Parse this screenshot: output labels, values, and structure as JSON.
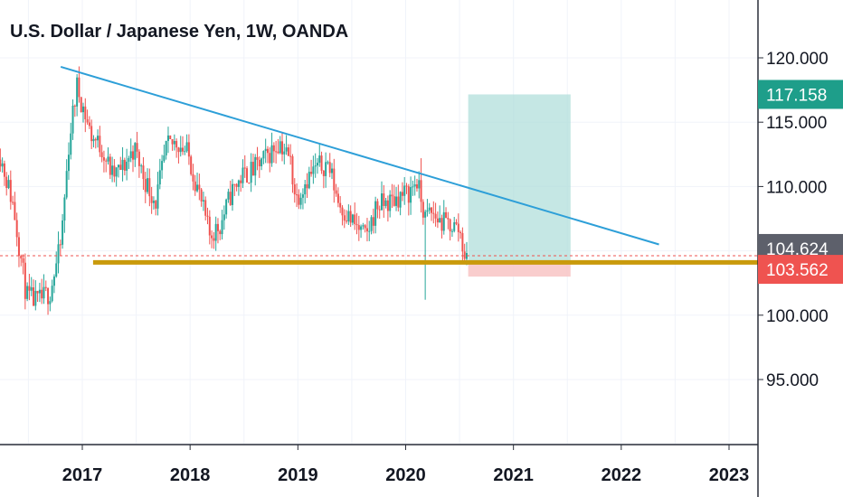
{
  "chart_data": {
    "type": "candlestick",
    "title": "U.S. Dollar / Japanese Yen, 1W, OANDA",
    "x_tick_labels": [
      "2017",
      "2018",
      "2019",
      "2020",
      "2021",
      "2022",
      "2023"
    ],
    "y_tick_labels": [
      "120.000",
      "115.000",
      "110.000",
      "100.000",
      "95.000"
    ],
    "y_ticks": [
      120,
      115,
      110,
      100,
      95
    ],
    "ylim": [
      89.5,
      124.5
    ],
    "xlim": [
      2016.22,
      2023.3
    ],
    "grid": true,
    "price_tags": [
      {
        "label": "117.158",
        "value": 117.158,
        "color": "#1e9e8a"
      },
      {
        "label": "104.624",
        "value": 104.624,
        "color": "#5d606b"
      },
      {
        "label": "103.562",
        "value": 103.562,
        "color": "#ef5350"
      }
    ],
    "dashed_price_line": 104.624,
    "trendline": {
      "x1": 2016.8,
      "y1": 119.3,
      "x2": 2022.35,
      "y2": 105.5,
      "color": "#2d9fd8"
    },
    "support_line": {
      "x1": 2016.3,
      "x2": 2023.3,
      "y": 104.1,
      "color": "#c99a0b"
    },
    "position": {
      "entry": 104.2,
      "target": 117.158,
      "stop": 103.0,
      "x_start": 2020.58,
      "x_end": 2021.53,
      "profit_color": "#b2dfdb",
      "loss_color": "#f8c4c4"
    },
    "up_color": "#26a69a",
    "down_color": "#ef5350",
    "anchors": [
      [
        2016.22,
        113.6
      ],
      [
        2016.38,
        108.5
      ],
      [
        2016.5,
        101.5
      ],
      [
        2016.6,
        101.0
      ],
      [
        2016.72,
        101.8
      ],
      [
        2016.82,
        105.5
      ],
      [
        2016.9,
        113.8
      ],
      [
        2016.97,
        117.8
      ],
      [
        2017.1,
        114.0
      ],
      [
        2017.2,
        113.0
      ],
      [
        2017.3,
        110.8
      ],
      [
        2017.4,
        111.5
      ],
      [
        2017.5,
        113.0
      ],
      [
        2017.6,
        110.5
      ],
      [
        2017.7,
        108.8
      ],
      [
        2017.8,
        113.0
      ],
      [
        2017.9,
        113.5
      ],
      [
        2018.0,
        112.5
      ],
      [
        2018.1,
        109.5
      ],
      [
        2018.2,
        106.2
      ],
      [
        2018.3,
        107.0
      ],
      [
        2018.4,
        109.5
      ],
      [
        2018.5,
        110.8
      ],
      [
        2018.6,
        111.2
      ],
      [
        2018.75,
        112.5
      ],
      [
        2018.85,
        113.5
      ],
      [
        2018.95,
        112.0
      ],
      [
        2019.0,
        109.0
      ],
      [
        2019.1,
        110.6
      ],
      [
        2019.2,
        111.5
      ],
      [
        2019.3,
        111.8
      ],
      [
        2019.4,
        108.7
      ],
      [
        2019.5,
        107.5
      ],
      [
        2019.6,
        106.5
      ],
      [
        2019.65,
        106.0
      ],
      [
        2019.75,
        108.5
      ],
      [
        2019.85,
        108.7
      ],
      [
        2019.95,
        109.2
      ],
      [
        2020.05,
        109.5
      ],
      [
        2020.12,
        110.5
      ],
      [
        2020.2,
        107.5
      ],
      [
        2020.25,
        108.0
      ],
      [
        2020.35,
        107.2
      ],
      [
        2020.45,
        107.0
      ],
      [
        2020.52,
        106.6
      ],
      [
        2020.58,
        104.2
      ]
    ]
  }
}
